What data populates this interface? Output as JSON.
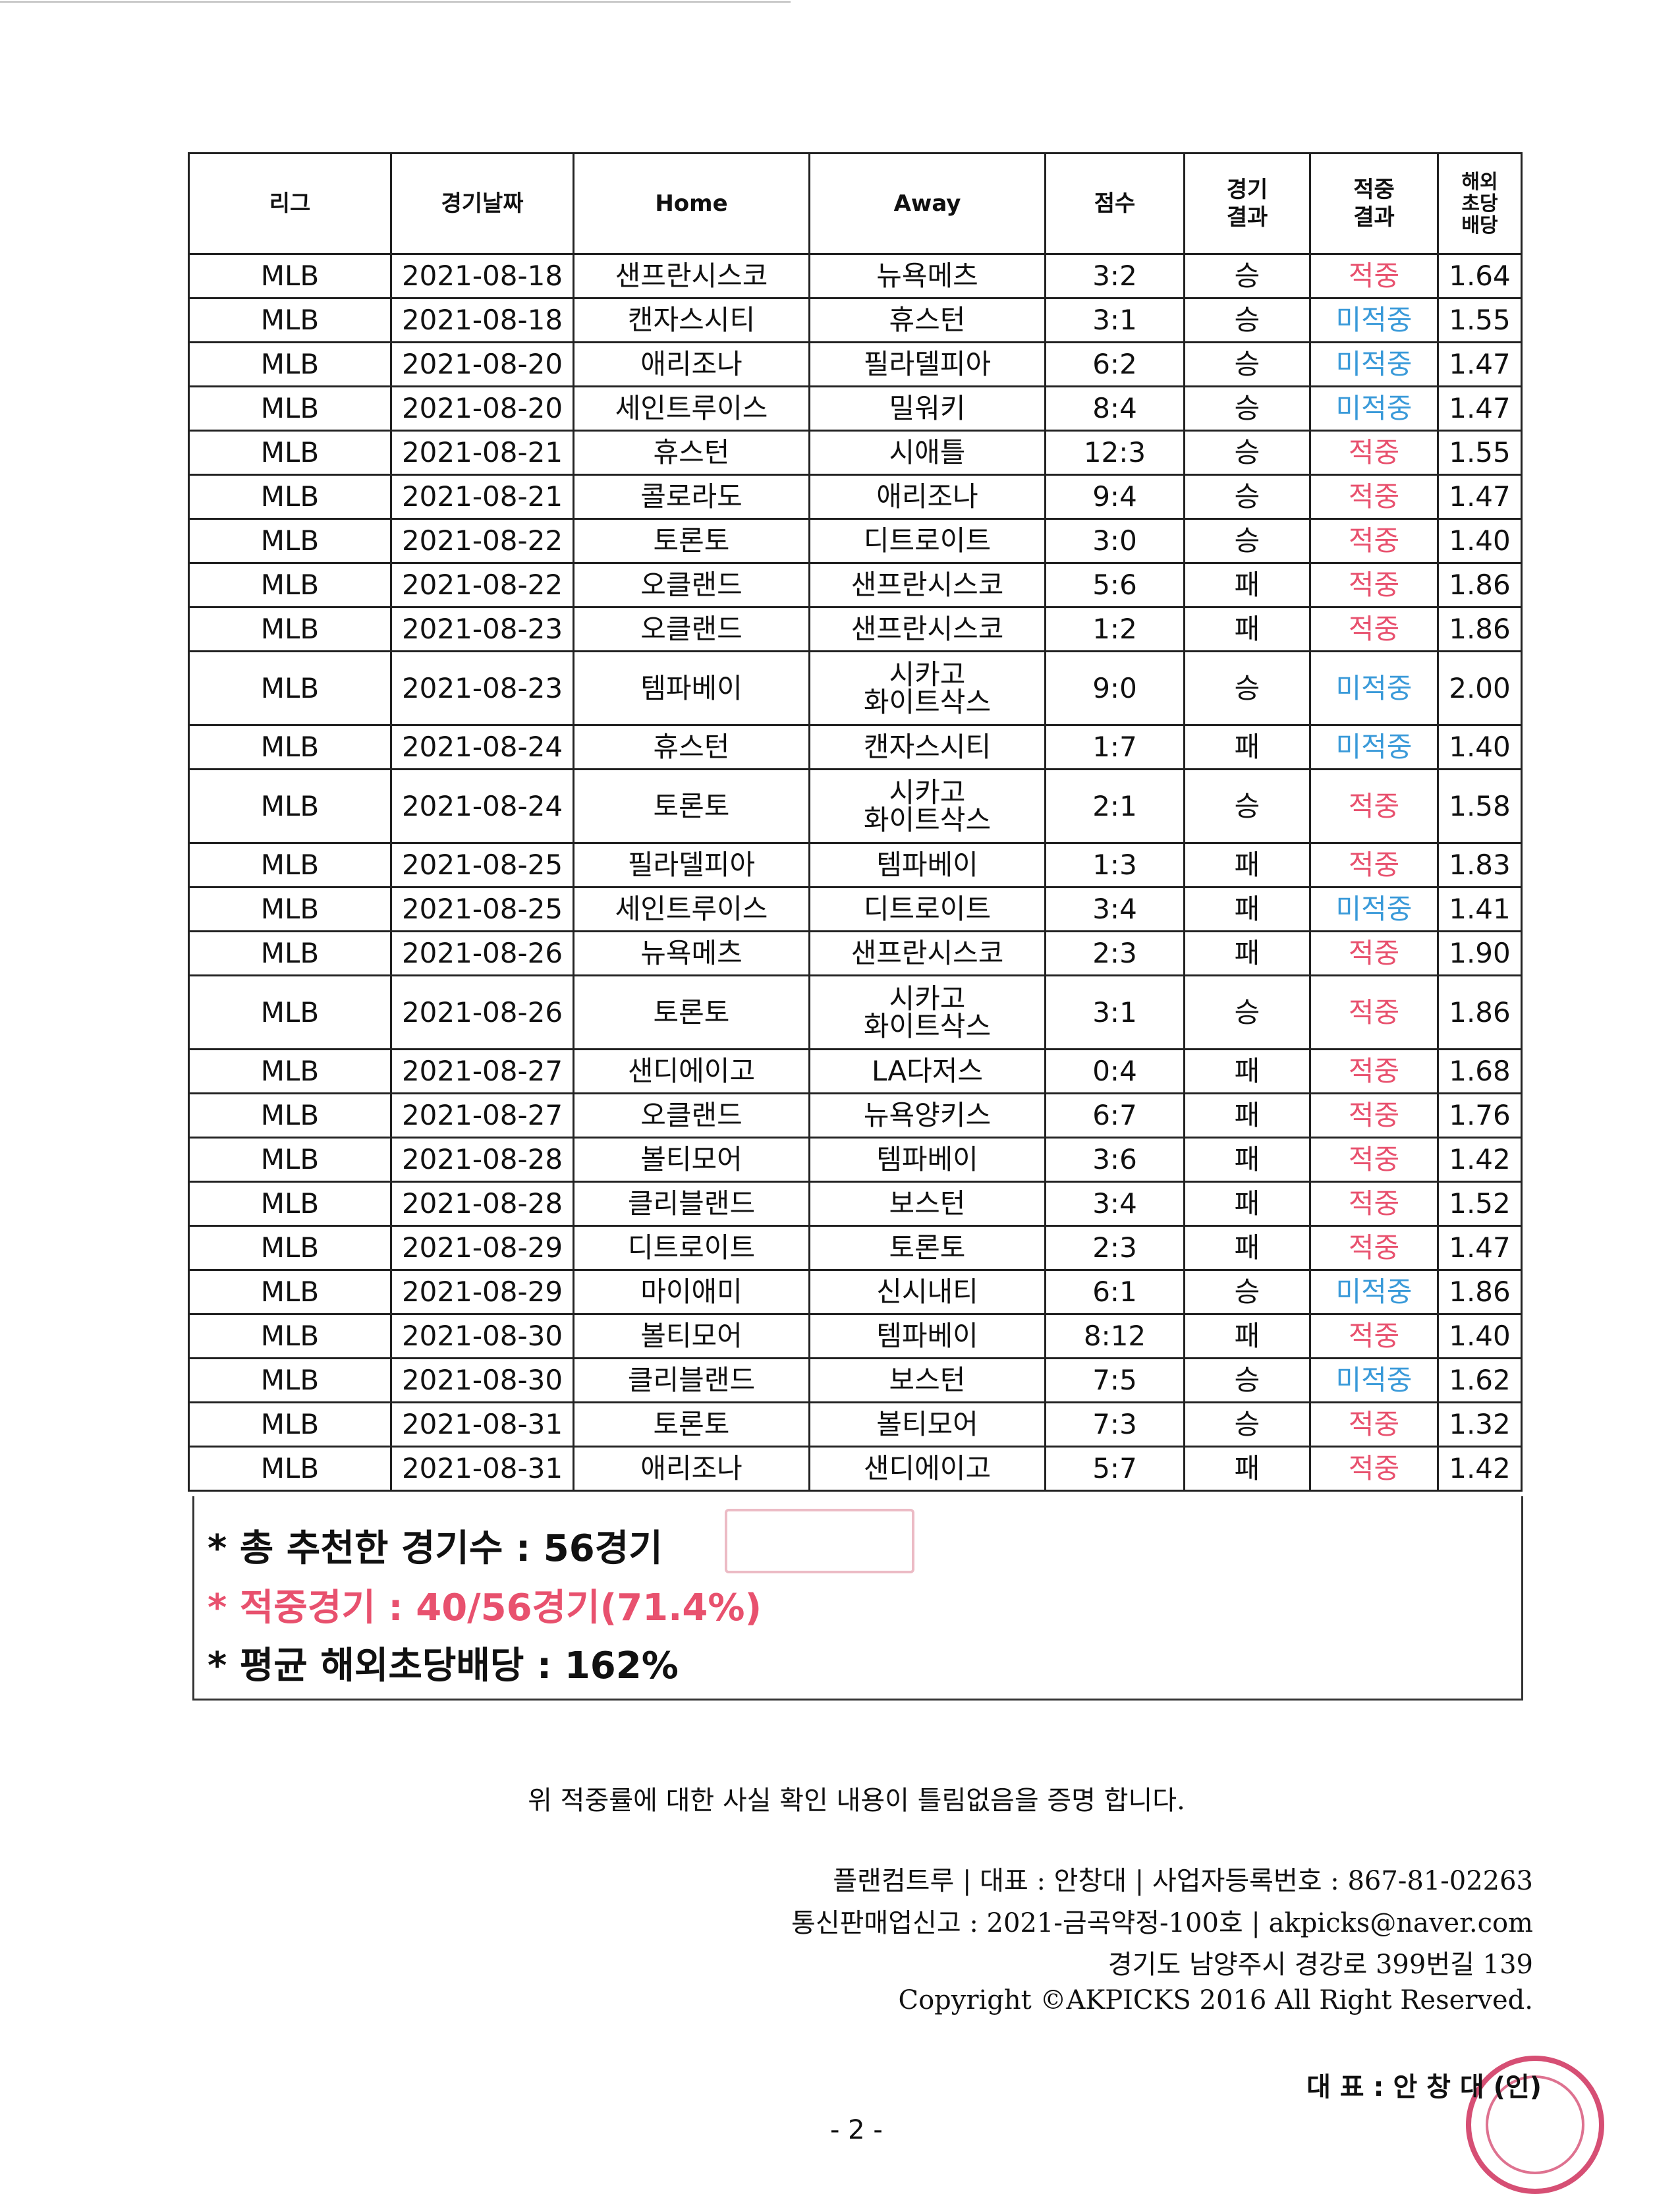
{
  "table": {
    "headers": {
      "league": "리그",
      "date": "경기날짜",
      "home": "Home",
      "away": "Away",
      "score": "점수",
      "result_l1": "경기",
      "result_l2": "결과",
      "hit_l1": "적중",
      "hit_l2": "결과",
      "odds_l1": "해외",
      "odds_l2": "초당",
      "odds_l3": "배당"
    },
    "rows": [
      {
        "league": "MLB",
        "date": "2021-08-18",
        "home": "샌프란시스코",
        "away": "뉴욕메츠",
        "score": "3:2",
        "result": "승",
        "hit": "적중",
        "odds": "1.64"
      },
      {
        "league": "MLB",
        "date": "2021-08-18",
        "home": "캔자스시티",
        "away": "휴스턴",
        "score": "3:1",
        "result": "승",
        "hit": "미적중",
        "odds": "1.55"
      },
      {
        "league": "MLB",
        "date": "2021-08-20",
        "home": "애리조나",
        "away": "필라델피아",
        "score": "6:2",
        "result": "승",
        "hit": "미적중",
        "odds": "1.47"
      },
      {
        "league": "MLB",
        "date": "2021-08-20",
        "home": "세인트루이스",
        "away": "밀워키",
        "score": "8:4",
        "result": "승",
        "hit": "미적중",
        "odds": "1.47"
      },
      {
        "league": "MLB",
        "date": "2021-08-21",
        "home": "휴스턴",
        "away": "시애틀",
        "score": "12:3",
        "result": "승",
        "hit": "적중",
        "odds": "1.55"
      },
      {
        "league": "MLB",
        "date": "2021-08-21",
        "home": "콜로라도",
        "away": "애리조나",
        "score": "9:4",
        "result": "승",
        "hit": "적중",
        "odds": "1.47"
      },
      {
        "league": "MLB",
        "date": "2021-08-22",
        "home": "토론토",
        "away": "디트로이트",
        "score": "3:0",
        "result": "승",
        "hit": "적중",
        "odds": "1.40"
      },
      {
        "league": "MLB",
        "date": "2021-08-22",
        "home": "오클랜드",
        "away": "샌프란시스코",
        "score": "5:6",
        "result": "패",
        "hit": "적중",
        "odds": "1.86"
      },
      {
        "league": "MLB",
        "date": "2021-08-23",
        "home": "오클랜드",
        "away": "샌프란시스코",
        "score": "1:2",
        "result": "패",
        "hit": "적중",
        "odds": "1.86"
      },
      {
        "league": "MLB",
        "date": "2021-08-23",
        "home": "템파베이",
        "away": "시카고",
        "away2": "화이트삭스",
        "score": "9:0",
        "result": "승",
        "hit": "미적중",
        "odds": "2.00"
      },
      {
        "league": "MLB",
        "date": "2021-08-24",
        "home": "휴스턴",
        "away": "캔자스시티",
        "score": "1:7",
        "result": "패",
        "hit": "미적중",
        "odds": "1.40"
      },
      {
        "league": "MLB",
        "date": "2021-08-24",
        "home": "토론토",
        "away": "시카고",
        "away2": "화이트삭스",
        "score": "2:1",
        "result": "승",
        "hit": "적중",
        "odds": "1.58"
      },
      {
        "league": "MLB",
        "date": "2021-08-25",
        "home": "필라델피아",
        "away": "템파베이",
        "score": "1:3",
        "result": "패",
        "hit": "적중",
        "odds": "1.83"
      },
      {
        "league": "MLB",
        "date": "2021-08-25",
        "home": "세인트루이스",
        "away": "디트로이트",
        "score": "3:4",
        "result": "패",
        "hit": "미적중",
        "odds": "1.41"
      },
      {
        "league": "MLB",
        "date": "2021-08-26",
        "home": "뉴욕메츠",
        "away": "샌프란시스코",
        "score": "2:3",
        "result": "패",
        "hit": "적중",
        "odds": "1.90"
      },
      {
        "league": "MLB",
        "date": "2021-08-26",
        "home": "토론토",
        "away": "시카고",
        "away2": "화이트삭스",
        "score": "3:1",
        "result": "승",
        "hit": "적중",
        "odds": "1.86"
      },
      {
        "league": "MLB",
        "date": "2021-08-27",
        "home": "샌디에이고",
        "away": "LA다저스",
        "score": "0:4",
        "result": "패",
        "hit": "적중",
        "odds": "1.68"
      },
      {
        "league": "MLB",
        "date": "2021-08-27",
        "home": "오클랜드",
        "away": "뉴욕양키스",
        "score": "6:7",
        "result": "패",
        "hit": "적중",
        "odds": "1.76"
      },
      {
        "league": "MLB",
        "date": "2021-08-28",
        "home": "볼티모어",
        "away": "템파베이",
        "score": "3:6",
        "result": "패",
        "hit": "적중",
        "odds": "1.42"
      },
      {
        "league": "MLB",
        "date": "2021-08-28",
        "home": "클리블랜드",
        "away": "보스턴",
        "score": "3:4",
        "result": "패",
        "hit": "적중",
        "odds": "1.52"
      },
      {
        "league": "MLB",
        "date": "2021-08-29",
        "home": "디트로이트",
        "away": "토론토",
        "score": "2:3",
        "result": "패",
        "hit": "적중",
        "odds": "1.47"
      },
      {
        "league": "MLB",
        "date": "2021-08-29",
        "home": "마이애미",
        "away": "신시내티",
        "score": "6:1",
        "result": "승",
        "hit": "미적중",
        "odds": "1.86"
      },
      {
        "league": "MLB",
        "date": "2021-08-30",
        "home": "볼티모어",
        "away": "템파베이",
        "score": "8:12",
        "result": "패",
        "hit": "적중",
        "odds": "1.40"
      },
      {
        "league": "MLB",
        "date": "2021-08-30",
        "home": "클리블랜드",
        "away": "보스턴",
        "score": "7:5",
        "result": "승",
        "hit": "미적중",
        "odds": "1.62"
      },
      {
        "league": "MLB",
        "date": "2021-08-31",
        "home": "토론토",
        "away": "볼티모어",
        "score": "7:3",
        "result": "승",
        "hit": "적중",
        "odds": "1.32"
      },
      {
        "league": "MLB",
        "date": "2021-08-31",
        "home": "애리조나",
        "away": "샌디에이고",
        "score": "5:7",
        "result": "패",
        "hit": "적중",
        "odds": "1.42"
      }
    ]
  },
  "summary": {
    "total": "* 총 추천한 경기수 : 56경기",
    "hits": "* 적중경기 : 40/56경기(71.4%)",
    "avg_odds": "* 평균 해외초당배당 : 162%"
  },
  "certification": "위 적중률에 대한 사실 확인 내용이 틀림없음을 증명 합니다.",
  "footer": {
    "line1": "플랜컴트루 | 대표 : 안창대 | 사업자등록번호 : 867-81-02263",
    "line2": "통신판매업신고 : 2021-금곡약정-100호 | akpicks@naver.com",
    "line3": "경기도 남양주시 경강로 399번길 139",
    "line4": "Copyright ©AKPICKS 2016 All Right Reserved."
  },
  "signature": "대 표 : 안 창 대 (인)",
  "page_number": "- 2 -",
  "colors": {
    "hit": "#e8516e",
    "miss": "#3a9ad9",
    "seal": "#c81446"
  }
}
